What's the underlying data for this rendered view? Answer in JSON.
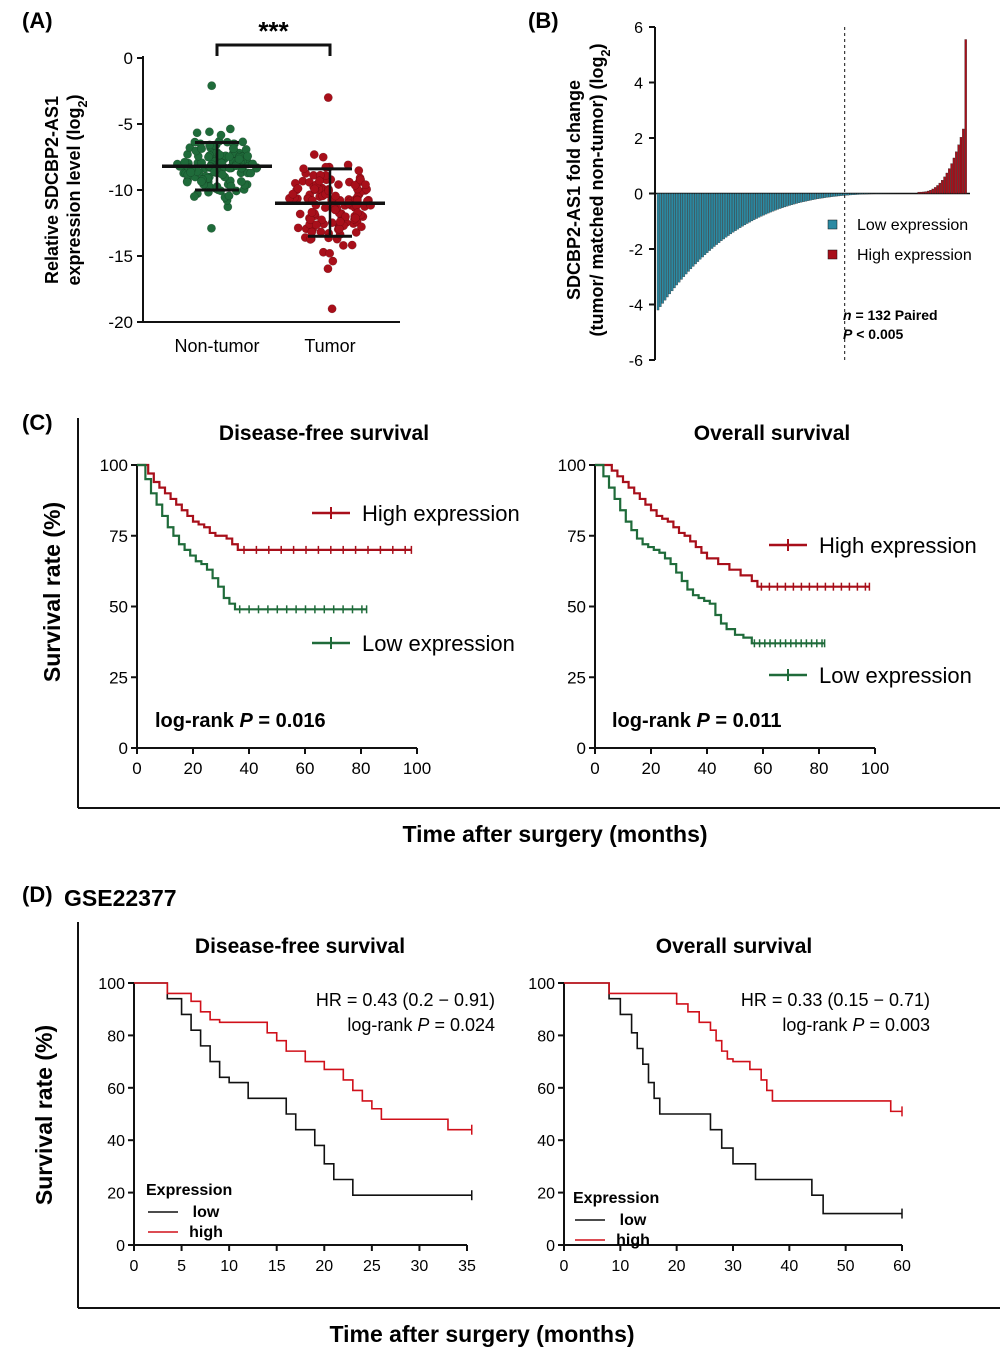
{
  "panels": {
    "A": {
      "label": "(A)"
    },
    "B": {
      "label": "(B)"
    },
    "C": {
      "label": "(C)"
    },
    "D": {
      "label": "(D)",
      "dataset": "GSE22377"
    }
  },
  "colors": {
    "green": "#1f6b3a",
    "red_dark": "#a80f1a",
    "teal": "#2b8aa3",
    "red_line": "#d0101a",
    "black": "#111111"
  },
  "chart_data": [
    {
      "id": "A",
      "type": "scatter",
      "ylabel_line1": "Relative SDCBP2-AS1",
      "ylabel_line2": "expression level (log",
      "ylabel_sub": "2",
      "ylabel_close": ")",
      "categories": [
        "Non-tumor",
        "Tumor"
      ],
      "ylim": [
        -20,
        0
      ],
      "yticks": [
        "0",
        "-5",
        "-10",
        "-15",
        "-20"
      ],
      "significance": "***",
      "summary": [
        {
          "group": "Non-tumor",
          "center": -8.2,
          "low": -10.0,
          "high": -6.4,
          "min": -12.9,
          "max": -2.1,
          "n": 132
        },
        {
          "group": "Tumor",
          "center": -11.0,
          "low": -13.5,
          "high": -8.4,
          "min": -19.0,
          "max": -3.0,
          "n": 132
        }
      ]
    },
    {
      "id": "B",
      "type": "bar",
      "ylabel_line1": "SDCBP2-AS1 fold change",
      "ylabel_line2": "(tumor/ matched  non-tumor) (log",
      "ylabel_sub": "2",
      "ylabel_close": ")",
      "ylim": [
        -6,
        6
      ],
      "yticks": [
        "6",
        "4",
        "2",
        "0",
        "-2",
        "-4",
        "-6"
      ],
      "n_pairs": 132,
      "n_low": 111,
      "n_high": 21,
      "min_value": -4.2,
      "max_value": 5.5,
      "legend": [
        {
          "name": "Low expression",
          "color": "#2b8aa3"
        },
        {
          "name": "High expression",
          "color": "#a80f1a"
        }
      ],
      "annot_n_italic": "n",
      "annot_n_rest": " = 132 Paired",
      "annot_p_italic": "P",
      "annot_p_rest": " < 0.005"
    },
    {
      "id": "C-dfs",
      "type": "line",
      "title": "Disease-free survival",
      "xlim": [
        0,
        100
      ],
      "ylim": [
        0,
        100
      ],
      "xticks": [
        "0",
        "20",
        "40",
        "60",
        "80",
        "100"
      ],
      "yticks": [
        "0",
        "25",
        "50",
        "75",
        "100"
      ],
      "annotation_prefix": "log-rank ",
      "annotation_p": "P",
      "annotation_value": " = 0.016",
      "series": [
        {
          "name": "High expression",
          "color": "#a80f1a",
          "x": [
            0,
            4,
            6,
            8,
            10,
            12,
            14,
            16,
            18,
            20,
            22,
            24,
            26,
            28,
            30,
            32,
            34,
            36,
            98
          ],
          "y": [
            100,
            97,
            94,
            92,
            90,
            88,
            86,
            84,
            82,
            80,
            79,
            78,
            76,
            75,
            75,
            74,
            72,
            70,
            70
          ]
        },
        {
          "name": "Low expression",
          "color": "#1f6b3a",
          "x": [
            0,
            3,
            5,
            7,
            9,
            11,
            13,
            15,
            17,
            19,
            21,
            23,
            25,
            27,
            29,
            31,
            33,
            35,
            82
          ],
          "y": [
            100,
            95,
            90,
            86,
            82,
            78,
            75,
            72,
            70,
            68,
            66,
            65,
            63,
            60,
            57,
            53,
            51,
            49,
            49
          ]
        }
      ]
    },
    {
      "id": "C-os",
      "type": "line",
      "title": "Overall survival",
      "xlim": [
        0,
        100
      ],
      "ylim": [
        0,
        100
      ],
      "xticks": [
        "0",
        "20",
        "40",
        "60",
        "80",
        "100"
      ],
      "yticks": [
        "0",
        "25",
        "50",
        "75",
        "100"
      ],
      "annotation_prefix": "log-rank ",
      "annotation_p": "P",
      "annotation_value": " = 0.011",
      "series": [
        {
          "name": "High expression",
          "color": "#a80f1a",
          "x": [
            0,
            6,
            8,
            10,
            12,
            14,
            16,
            18,
            20,
            22,
            24,
            26,
            28,
            30,
            32,
            34,
            36,
            38,
            40,
            44,
            48,
            52,
            56,
            58,
            98
          ],
          "y": [
            100,
            98,
            96,
            94,
            92,
            90,
            88,
            86,
            84,
            82,
            81,
            80,
            78,
            76,
            75,
            73,
            71,
            69,
            67,
            65,
            63,
            61,
            59,
            57,
            57
          ]
        },
        {
          "name": "Low expression",
          "color": "#1f6b3a",
          "x": [
            0,
            3,
            5,
            7,
            9,
            11,
            13,
            15,
            17,
            19,
            21,
            23,
            25,
            27,
            29,
            31,
            33,
            35,
            37,
            39,
            41,
            43,
            45,
            47,
            50,
            53,
            56,
            82
          ],
          "y": [
            100,
            96,
            92,
            88,
            84,
            80,
            77,
            74,
            72,
            71,
            70,
            69,
            67,
            65,
            62,
            59,
            56,
            54,
            53,
            52,
            51,
            47,
            44,
            42,
            40,
            39,
            37,
            37
          ]
        }
      ]
    },
    {
      "id": "D-dfs",
      "type": "line",
      "title": "Disease-free survival",
      "xlim": [
        0,
        35
      ],
      "ylim": [
        0,
        100
      ],
      "xticks": [
        "0",
        "5",
        "10",
        "15",
        "20",
        "25",
        "30",
        "35"
      ],
      "yticks": [
        "0",
        "20",
        "40",
        "60",
        "80",
        "100"
      ],
      "hr": "HR = 0.43 (0.2 − 0.91)",
      "annotation_prefix": "log-rank ",
      "annotation_p": "P",
      "annotation_value": " = 0.024",
      "legend_title": "Expression",
      "series": [
        {
          "name": "low",
          "color": "#111111",
          "x": [
            0,
            3.5,
            5,
            6,
            7,
            8,
            9,
            10,
            12,
            15,
            16,
            17,
            19,
            20,
            21,
            22,
            23,
            24.5,
            35.5
          ],
          "y": [
            100,
            94,
            88,
            82,
            76,
            70,
            64,
            62,
            56,
            56,
            50,
            44,
            38,
            31,
            25,
            25,
            19,
            19,
            19
          ]
        },
        {
          "name": "high",
          "color": "#d0101a",
          "x": [
            0,
            3.5,
            6,
            7,
            8,
            9,
            10,
            12,
            14,
            15,
            16,
            18,
            20,
            22,
            23,
            24,
            25,
            26,
            33,
            35.5
          ],
          "y": [
            100,
            96,
            93,
            89,
            86,
            85,
            85,
            85,
            81,
            78,
            74,
            70,
            67,
            63,
            59,
            55,
            52,
            48,
            44,
            44
          ]
        }
      ]
    },
    {
      "id": "D-os",
      "type": "line",
      "title": "Overall survival",
      "xlim": [
        0,
        60
      ],
      "ylim": [
        0,
        100
      ],
      "xticks": [
        "0",
        "10",
        "20",
        "30",
        "40",
        "50",
        "60"
      ],
      "yticks": [
        "0",
        "20",
        "40",
        "60",
        "80",
        "100"
      ],
      "hr": "HR = 0.33 (0.15 − 0.71)",
      "annotation_prefix": "log-rank ",
      "annotation_p": "P",
      "annotation_value": " = 0.003",
      "legend_title": "Expression",
      "series": [
        {
          "name": "low",
          "color": "#111111",
          "x": [
            0,
            8,
            10,
            12,
            13,
            14,
            15,
            16,
            17,
            24,
            26,
            28,
            30,
            32,
            34,
            36,
            44,
            45,
            46,
            60
          ],
          "y": [
            100,
            94,
            88,
            81,
            75,
            69,
            62,
            56,
            50,
            50,
            44,
            37,
            31,
            31,
            25,
            25,
            19,
            19,
            12,
            12
          ]
        },
        {
          "name": "high",
          "color": "#d0101a",
          "x": [
            0,
            8,
            18,
            20,
            22,
            24,
            26,
            27,
            28,
            29,
            30,
            33,
            35,
            36,
            37,
            38,
            57,
            58,
            60
          ],
          "y": [
            100,
            96,
            96,
            92,
            89,
            85,
            82,
            78,
            74,
            71,
            70,
            67,
            63,
            59,
            55,
            55,
            55,
            51,
            51
          ]
        }
      ]
    }
  ],
  "shared": {
    "c_ylabel": "Survival rate (%)",
    "c_xlabel": "Time after surgery (months)",
    "d_ylabel": "Survival rate (%)",
    "d_xlabel": "Time after surgery (months)"
  }
}
